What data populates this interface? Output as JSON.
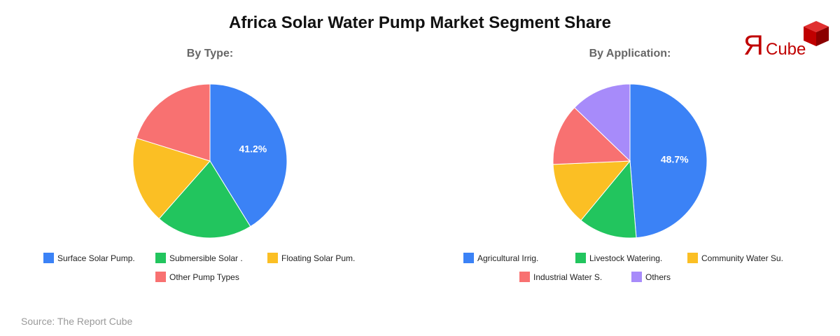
{
  "title": "Africa Solar Water Pump Market Segment Share",
  "source": "Source: The Report Cube",
  "logo": {
    "text": "ЯCube",
    "color": "#c00000"
  },
  "chart_data": [
    {
      "type": "pie",
      "title": "By Type:",
      "categories": [
        "Surface Solar Pump.",
        "Submersible Solar .",
        "Floating Solar Pum.",
        "Other Pump Types"
      ],
      "values": [
        41.2,
        20.3,
        18.3,
        20.2
      ],
      "colors": [
        "#3b82f6",
        "#22c55e",
        "#fbbf24",
        "#f87171"
      ],
      "data_labels": [
        "41.2%",
        null,
        null,
        null
      ],
      "legend": "bottom"
    },
    {
      "type": "pie",
      "title": "By Application:",
      "categories": [
        "Agricultural Irrig.",
        "Livestock Watering.",
        "Community Water Su.",
        "Industrial Water S.",
        "Others"
      ],
      "values": [
        48.7,
        12.3,
        13.3,
        12.9,
        12.8
      ],
      "colors": [
        "#3b82f6",
        "#22c55e",
        "#fbbf24",
        "#f87171",
        "#a78bfa"
      ],
      "data_labels": [
        "48.7%",
        null,
        null,
        null,
        null
      ],
      "legend": "bottom"
    }
  ]
}
